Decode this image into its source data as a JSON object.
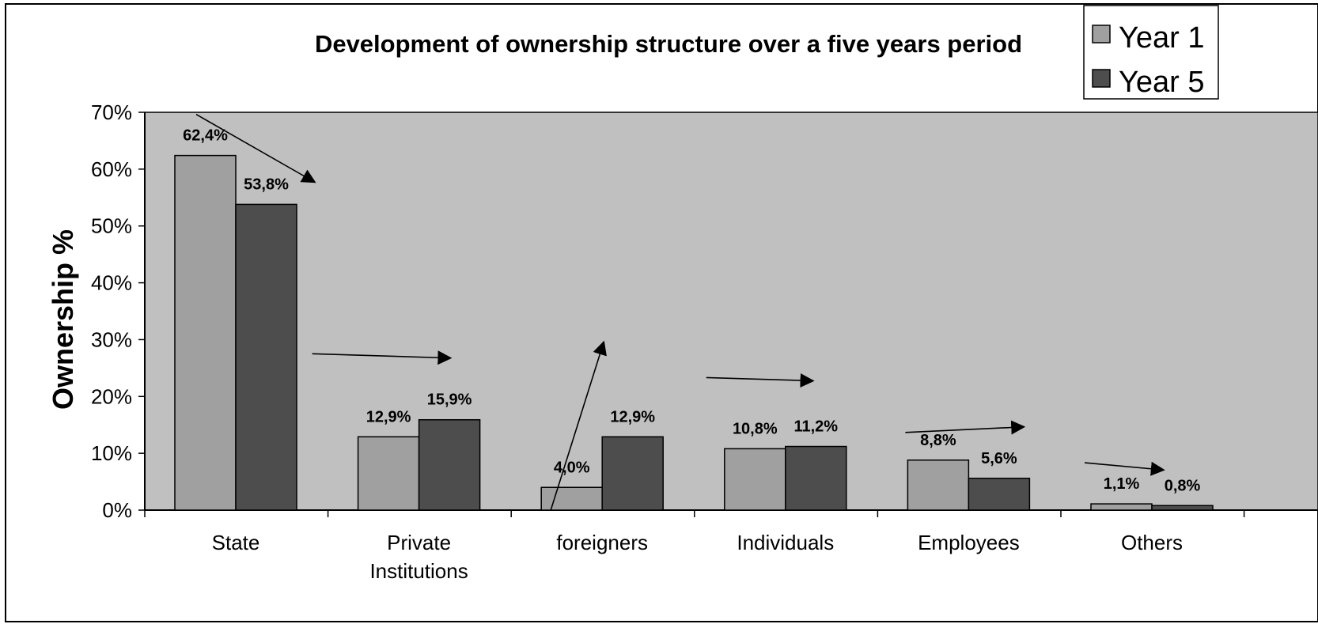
{
  "chart_data": {
    "type": "bar",
    "title": "Development of ownership structure over a five years period",
    "xlabel": "",
    "ylabel": "Ownership %",
    "categories": [
      [
        "State"
      ],
      [
        "Private",
        "Institutions"
      ],
      [
        "foreigners"
      ],
      [
        "Individuals"
      ],
      [
        "Employees"
      ],
      [
        "Others"
      ]
    ],
    "series": [
      {
        "name": "Year 1",
        "values": [
          62.4,
          12.9,
          4.0,
          10.8,
          8.8,
          1.1
        ],
        "labels": [
          "62,4%",
          "12,9%",
          "4,0%",
          "10,8%",
          "8,8%",
          "1,1%"
        ],
        "color": "#a0a0a0"
      },
      {
        "name": "Year 5",
        "values": [
          53.8,
          15.9,
          12.9,
          11.2,
          5.6,
          0.8
        ],
        "labels": [
          "53,8%",
          "15,9%",
          "12,9%",
          "11,2%",
          "5,6%",
          "0,8%"
        ],
        "color": "#4d4d4d"
      }
    ],
    "ylim": [
      0,
      70
    ],
    "yticks": [
      0,
      10,
      20,
      30,
      40,
      50,
      60,
      70
    ],
    "ytick_labels": [
      "0%",
      "10%",
      "20%",
      "30%",
      "40%",
      "50%",
      "60%",
      "70%"
    ],
    "plot_background": "#c0c0c0",
    "grid": false,
    "legend_position": "top-right",
    "trend_arrows": true
  }
}
